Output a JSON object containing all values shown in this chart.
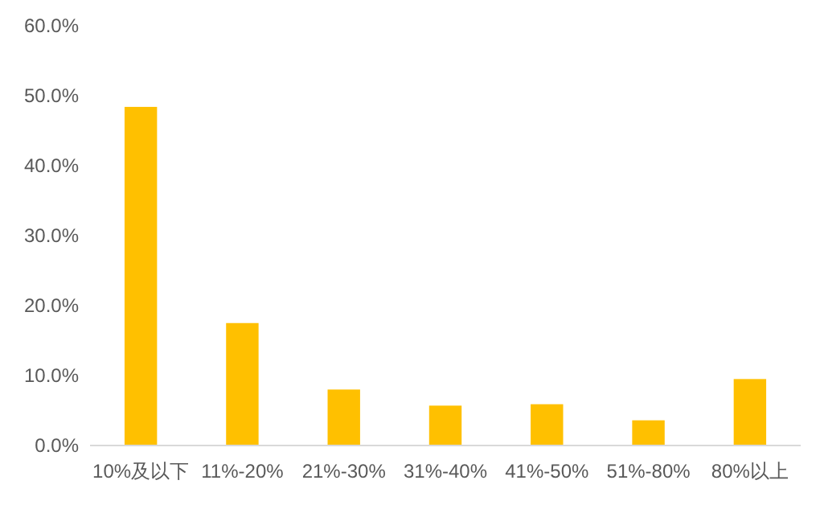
{
  "chart_data": {
    "type": "bar",
    "categories": [
      "10%及以下",
      "11%-20%",
      "21%-30%",
      "31%-40%",
      "41%-50%",
      "51%-80%",
      "80%以上"
    ],
    "values": [
      48.4,
      17.5,
      8.0,
      5.7,
      5.9,
      3.6,
      9.5
    ],
    "color": "#ffc000",
    "ylim": [
      0,
      60
    ],
    "yticks": [
      {
        "value": 0,
        "label": "0.0%"
      },
      {
        "value": 10,
        "label": "10.0%"
      },
      {
        "value": 20,
        "label": "20.0%"
      },
      {
        "value": 30,
        "label": "30.0%"
      },
      {
        "value": 40,
        "label": "40.0%"
      },
      {
        "value": 50,
        "label": "50.0%"
      },
      {
        "value": 60,
        "label": "60.0%"
      }
    ],
    "grid": false
  }
}
